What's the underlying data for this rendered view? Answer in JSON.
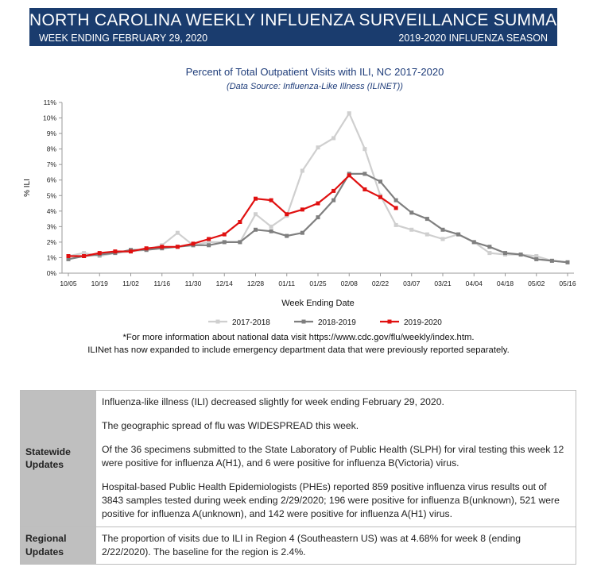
{
  "header": {
    "title": "NORTH CAROLINA WEEKLY INFLUENZA SURVEILLANCE SUMMARY",
    "week_ending": "WEEK ENDING FEBRUARY 29, 2020",
    "season": "2019-2020 INFLUENZA SEASON"
  },
  "colors": {
    "banner": "#1a3c6e",
    "title_blue": "#1f3d7a",
    "s2017": "#cfcfcf",
    "s2018": "#7f7f7f",
    "s2019": "#e01010",
    "label_cell": "#bfbfbf"
  },
  "chart_data": {
    "type": "line",
    "title": "Percent of Total Outpatient Visits with ILI, NC 2017-2020",
    "subtitle": "(Data Source: Influenza-Like Illness (ILINET))",
    "xlabel": "Week Ending Date",
    "ylabel": "% ILI",
    "ylim": [
      0,
      11
    ],
    "yticks": [
      "0%",
      "1%",
      "2%",
      "3%",
      "4%",
      "5%",
      "6%",
      "7%",
      "8%",
      "9%",
      "10%",
      "11%"
    ],
    "x": [
      "10/05",
      "10/12",
      "10/19",
      "10/26",
      "11/02",
      "11/09",
      "11/16",
      "11/23",
      "11/30",
      "12/07",
      "12/14",
      "12/21",
      "12/28",
      "01/04",
      "01/11",
      "01/18",
      "01/25",
      "02/01",
      "02/08",
      "02/15",
      "02/22",
      "02/29",
      "03/07",
      "03/14",
      "03/21",
      "03/28",
      "04/04",
      "04/11",
      "04/18",
      "04/25",
      "05/02",
      "05/09",
      "05/16"
    ],
    "xtick_labels": [
      "10/05",
      "10/19",
      "11/02",
      "11/16",
      "11/30",
      "12/14",
      "12/28",
      "01/11",
      "01/25",
      "02/08",
      "02/22",
      "03/07",
      "03/21",
      "04/04",
      "04/18",
      "05/02",
      "05/16"
    ],
    "legend_position": "bottom",
    "grid": false,
    "series": [
      {
        "name": "2017-2018",
        "color": "#cfcfcf",
        "values": [
          1.1,
          1.3,
          1.1,
          1.3,
          1.4,
          1.5,
          1.8,
          2.6,
          1.8,
          2.0,
          2.0,
          2.0,
          3.8,
          3.0,
          3.7,
          6.6,
          8.1,
          8.7,
          10.3,
          8.0,
          5.0,
          3.1,
          2.8,
          2.5,
          2.2,
          2.5,
          2.0,
          1.3,
          1.2,
          1.2,
          1.1,
          0.8,
          0.7
        ]
      },
      {
        "name": "2018-2019",
        "color": "#7f7f7f",
        "values": [
          0.9,
          1.1,
          1.2,
          1.3,
          1.5,
          1.5,
          1.6,
          1.7,
          1.8,
          1.8,
          2.0,
          2.0,
          2.8,
          2.7,
          2.4,
          2.6,
          3.6,
          4.7,
          6.4,
          6.4,
          5.9,
          4.7,
          3.9,
          3.5,
          2.8,
          2.5,
          2.0,
          1.7,
          1.3,
          1.2,
          0.9,
          0.8,
          0.7
        ]
      },
      {
        "name": "2019-2020",
        "color": "#e01010",
        "values": [
          1.1,
          1.1,
          1.3,
          1.4,
          1.4,
          1.6,
          1.7,
          1.7,
          1.9,
          2.2,
          2.5,
          3.3,
          4.8,
          4.7,
          3.8,
          4.1,
          4.5,
          5.3,
          6.3,
          5.4,
          4.9,
          4.2,
          null,
          null,
          null,
          null,
          null,
          null,
          null,
          null,
          null,
          null,
          null
        ]
      }
    ]
  },
  "notes": {
    "line1": "*For more information about national data visit https://www.cdc.gov/flu/weekly/index.htm.",
    "line2": "ILINet has now expanded to include emergency department data that were previously reported separately."
  },
  "updates": {
    "statewide_label": "Statewide Updates",
    "statewide": [
      "Influenza-like illness (ILI) decreased slightly for week ending February 29, 2020.",
      "The geographic spread of flu was WIDESPREAD this week.",
      "Of the 36 specimens submitted to the State Laboratory of Public Health (SLPH) for viral testing this week 12 were positive for influenza A(H1), and 6 were positive for influenza B(Victoria) virus.",
      "Hospital-based Public Health Epidemiologists (PHEs) reported 859 positive influenza virus results out of 3843 samples tested during week ending 2/29/2020; 196 were positive for influenza B(unknown), 521 were positive for influenza A(unknown), and 142 were positive for influenza A(H1) virus."
    ],
    "regional_label": "Regional Updates",
    "regional": "The proportion of visits due to ILI in Region 4 (Southeastern US) was at 4.68% for week 8 (ending 2/22/2020). The baseline for the region is 2.4%."
  }
}
